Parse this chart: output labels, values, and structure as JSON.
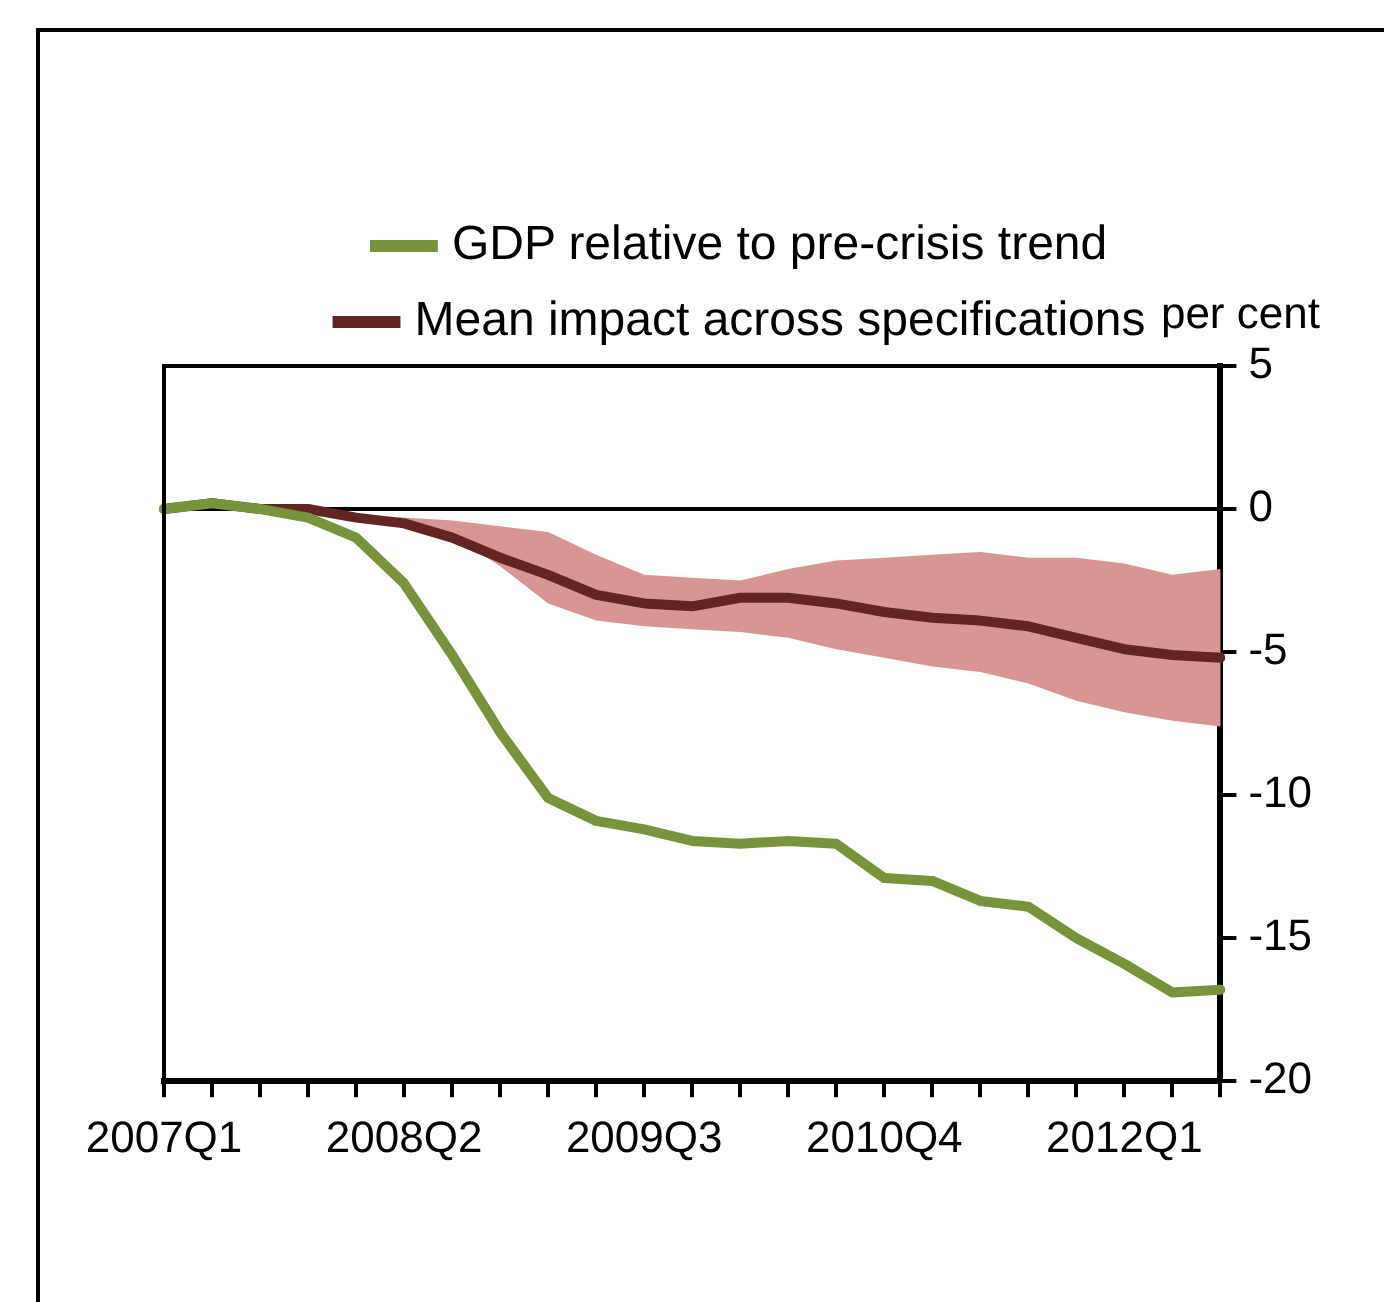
{
  "chart_data": {
    "type": "line",
    "ylabel": "per cent",
    "categories": [
      "2007Q1",
      null,
      null,
      null,
      null,
      "2008Q2",
      null,
      null,
      null,
      null,
      "2009Q3",
      null,
      null,
      null,
      null,
      "2010Q4",
      null,
      null,
      null,
      null,
      "2012Q1",
      null,
      null
    ],
    "series": [
      {
        "name": "GDP relative to pre-crisis trend",
        "color": "#77933c",
        "values": [
          0,
          0.2,
          0,
          -0.3,
          -1.0,
          -2.6,
          -5.1,
          -7.8,
          -10.1,
          -10.9,
          -11.2,
          -11.6,
          -11.7,
          -11.6,
          -11.7,
          -12.9,
          -13.0,
          -13.7,
          -13.9,
          -15.0,
          -15.9,
          -16.9,
          -16.8
        ]
      },
      {
        "name": "Mean impact across specifications",
        "color": "#632523",
        "values": [
          0,
          0.2,
          0,
          0,
          -0.3,
          -0.5,
          -1.0,
          -1.7,
          -2.3,
          -3.0,
          -3.3,
          -3.4,
          -3.1,
          -3.1,
          -3.3,
          -3.6,
          -3.8,
          -3.9,
          -4.1,
          -4.5,
          -4.9,
          -5.1,
          -5.2
        ],
        "upper": [
          0,
          0.2,
          0,
          0,
          -0.2,
          -0.3,
          -0.4,
          -0.6,
          -0.8,
          -1.6,
          -2.3,
          -2.4,
          -2.5,
          -2.1,
          -1.8,
          -1.7,
          -1.6,
          -1.5,
          -1.7,
          -1.7,
          -1.9,
          -2.3,
          -2.1
        ],
        "lower": [
          0,
          0.2,
          0,
          0,
          -0.4,
          -0.5,
          -0.9,
          -2.0,
          -3.3,
          -3.9,
          -4.1,
          -4.2,
          -4.3,
          -4.5,
          -4.9,
          -5.2,
          -5.5,
          -5.7,
          -6.1,
          -6.7,
          -7.1,
          -7.4,
          -7.6
        ]
      }
    ],
    "ylim": [
      -20,
      5
    ],
    "yticks": [
      -20,
      -15,
      -10,
      -5,
      0,
      5
    ],
    "ref_lines": [
      {
        "axis": "y",
        "value": 0,
        "color": "#000000"
      }
    ],
    "grid": false,
    "legend": "top",
    "marker": "none",
    "line_style": "solid"
  }
}
